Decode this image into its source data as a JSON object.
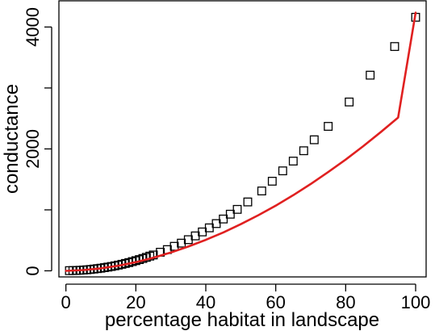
{
  "chart_data": {
    "type": "scatter",
    "xlabel": "percentage habitat in landscape",
    "ylabel": "conductance",
    "xlim": [
      -2,
      103
    ],
    "ylim": [
      -100,
      4430
    ],
    "xticks": [
      0,
      20,
      40,
      60,
      80,
      100
    ],
    "xtick_labels": [
      "0",
      "20",
      "40",
      "60",
      "80",
      "100"
    ],
    "yticks": [
      0,
      1000,
      2000,
      3000,
      4000
    ],
    "ytick_labels": [
      "0",
      "",
      "2000",
      "",
      "4000"
    ],
    "grid": false,
    "legend": "none",
    "series": [
      {
        "kind": "points",
        "marker": "open-square",
        "color": "#000000",
        "x": [
          1,
          2,
          3,
          4,
          5,
          6,
          7,
          8,
          9,
          10,
          11,
          12,
          13,
          14,
          15,
          16,
          17,
          18,
          19,
          20,
          21,
          22,
          23,
          24,
          25,
          27,
          29,
          31,
          33,
          35,
          37,
          39,
          41,
          43,
          45,
          47,
          49,
          52,
          56,
          59,
          62,
          65,
          68,
          71,
          75,
          81,
          87,
          94,
          100
        ],
        "y": [
          3,
          4,
          6,
          9,
          13,
          17,
          22,
          29,
          36,
          43,
          52,
          61,
          71,
          82,
          94,
          107,
          121,
          135,
          151,
          167,
          184,
          202,
          221,
          241,
          260,
          305,
          348,
          402,
          454,
          511,
          573,
          638,
          705,
          775,
          850,
          929,
          1008,
          1130,
          1310,
          1470,
          1640,
          1800,
          1970,
          2150,
          2370,
          2770,
          3210,
          3680,
          4160
        ]
      },
      {
        "kind": "line",
        "color": "#e02020",
        "x": [
          0,
          5,
          10,
          15,
          20,
          25,
          30,
          35,
          40,
          45,
          50,
          55,
          60,
          65,
          70,
          75,
          80,
          85,
          90,
          95,
          100
        ],
        "y": [
          0,
          12,
          40,
          84,
          142,
          214,
          300,
          398,
          508,
          630,
          765,
          912,
          1070,
          1240,
          1425,
          1620,
          1825,
          2045,
          2275,
          2515,
          4235
        ]
      }
    ]
  }
}
